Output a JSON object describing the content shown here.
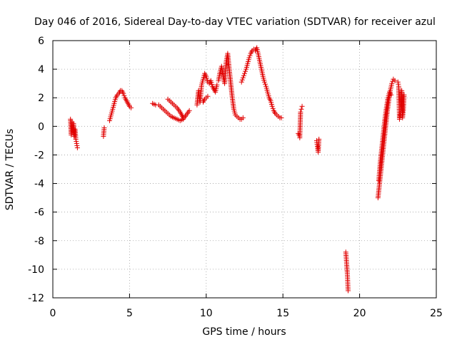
{
  "chart_data": {
    "type": "scatter",
    "title": "Day 046 of 2016, Sidereal Day-to-day VTEC variation (SDTVAR) for receiver azul",
    "xlabel": "GPS time / hours",
    "ylabel": "SDTVAR / TECUs",
    "xlim": [
      0,
      25
    ],
    "ylim": [
      -12,
      6
    ],
    "xticks": [
      0,
      5,
      10,
      15,
      20,
      25
    ],
    "xtick_labels": [
      "0",
      "5",
      "10",
      "15",
      "20",
      "25"
    ],
    "yticks": [
      -12,
      -10,
      -8,
      -6,
      -4,
      -2,
      0,
      2,
      4,
      6
    ],
    "ytick_labels": [
      "-12",
      "-10",
      "-8",
      "-6",
      "-4",
      "-2",
      "0",
      "2",
      "4",
      "6"
    ],
    "grid": true,
    "marker": "plus",
    "color": "#e00000",
    "segments": [
      {
        "x": [
          1.15,
          1.2,
          1.25,
          1.3,
          1.35,
          1.4,
          1.45,
          1.5,
          1.55,
          1.6
        ],
        "y": [
          0.5,
          -0.6,
          0.3,
          -0.4,
          0.2,
          -0.7,
          -0.2,
          -0.9,
          -1.2,
          -1.5
        ]
      },
      {
        "x": [
          3.3,
          3.35
        ],
        "y": [
          -0.7,
          -0.1
        ]
      },
      {
        "x": [
          3.7,
          3.8,
          3.9,
          4.0,
          4.1,
          4.2,
          4.3,
          4.4,
          4.5,
          4.6,
          4.7,
          4.8,
          4.9,
          5.0,
          5.1
        ],
        "y": [
          0.4,
          0.8,
          1.2,
          1.6,
          2.0,
          2.2,
          2.3,
          2.5,
          2.5,
          2.3,
          2.0,
          1.8,
          1.6,
          1.4,
          1.3
        ]
      },
      {
        "x": [
          6.5,
          6.7,
          6.9,
          7.1,
          7.3,
          7.5,
          7.7,
          7.9,
          8.1,
          8.3,
          8.5,
          8.7,
          8.9
        ],
        "y": [
          1.6,
          1.5,
          1.5,
          1.3,
          1.1,
          0.9,
          0.7,
          0.6,
          0.5,
          0.4,
          0.5,
          0.8,
          1.1
        ]
      },
      {
        "x": [
          7.5,
          7.7,
          7.9,
          8.1,
          8.3,
          8.5
        ],
        "y": [
          1.9,
          1.7,
          1.5,
          1.3,
          1.0,
          0.6
        ]
      },
      {
        "x": [
          9.4,
          9.5,
          9.6,
          9.7,
          9.8,
          9.9,
          10.0,
          10.1,
          10.2,
          10.3,
          10.4,
          10.5,
          10.6,
          10.7
        ],
        "y": [
          1.5,
          2.5,
          1.7,
          2.9,
          3.3,
          3.7,
          3.5,
          3.1,
          3.0,
          3.2,
          2.8,
          2.6,
          2.4,
          2.9
        ]
      },
      {
        "x": [
          9.8,
          9.9,
          10.0,
          10.1
        ],
        "y": [
          1.7,
          1.9,
          2.0,
          2.1
        ]
      },
      {
        "x": [
          10.8,
          10.9,
          11.0,
          11.1,
          11.2,
          11.3,
          11.4,
          11.5,
          11.6,
          11.7,
          11.8,
          11.9,
          12.0,
          12.1,
          12.2,
          12.3,
          12.4
        ],
        "y": [
          3.2,
          3.8,
          4.2,
          3.5,
          3.0,
          4.5,
          5.1,
          4.0,
          3.0,
          2.0,
          1.2,
          0.8,
          0.7,
          0.6,
          0.5,
          0.5,
          0.6
        ]
      },
      {
        "x": [
          12.3,
          12.4,
          12.5,
          12.6,
          12.7,
          12.8,
          12.9,
          13.0,
          13.1,
          13.2,
          13.3,
          13.4,
          13.5,
          13.6,
          13.7,
          13.8,
          13.9,
          14.0,
          14.1,
          14.2,
          14.3,
          14.4,
          14.5,
          14.6,
          14.7,
          14.8,
          14.9
        ],
        "y": [
          3.1,
          3.4,
          3.7,
          4.0,
          4.4,
          4.8,
          5.1,
          5.3,
          5.4,
          5.3,
          5.5,
          5.0,
          4.5,
          4.0,
          3.5,
          3.1,
          2.8,
          2.4,
          2.0,
          1.8,
          1.4,
          1.1,
          0.9,
          0.8,
          0.7,
          0.6,
          0.6
        ]
      },
      {
        "x": [
          16.0,
          16.05,
          16.1,
          16.15,
          16.2,
          16.25
        ],
        "y": [
          -0.5,
          -0.6,
          -0.8,
          1.0,
          1.2,
          1.4
        ]
      },
      {
        "x": [
          17.2,
          17.25,
          17.3,
          17.35
        ],
        "y": [
          -1.0,
          -1.4,
          -1.8,
          -0.9
        ]
      },
      {
        "x": [
          19.1,
          19.15,
          19.2,
          19.25
        ],
        "y": [
          -8.8,
          -9.5,
          -10.3,
          -11.5
        ]
      },
      {
        "x": [
          21.2,
          21.3,
          21.4,
          21.5,
          21.6,
          21.7,
          21.8,
          21.9,
          22.0,
          22.1,
          22.2,
          22.3
        ],
        "y": [
          -5.0,
          -4.0,
          -3.0,
          -2.0,
          -1.0,
          0.0,
          1.0,
          1.8,
          2.5,
          3.0,
          3.3,
          3.2
        ]
      },
      {
        "x": [
          21.25,
          21.35,
          21.45,
          21.55,
          21.65,
          21.75,
          21.85,
          21.95,
          22.05
        ],
        "y": [
          -3.8,
          -2.5,
          -1.5,
          -0.5,
          0.5,
          1.3,
          2.0,
          2.4,
          2.2
        ]
      },
      {
        "x": [
          22.5,
          22.55,
          22.6,
          22.65,
          22.7,
          22.75,
          22.8,
          22.85,
          22.9
        ],
        "y": [
          3.1,
          2.8,
          0.5,
          0.8,
          1.2,
          2.5,
          0.6,
          1.1,
          2.2
        ]
      }
    ]
  }
}
